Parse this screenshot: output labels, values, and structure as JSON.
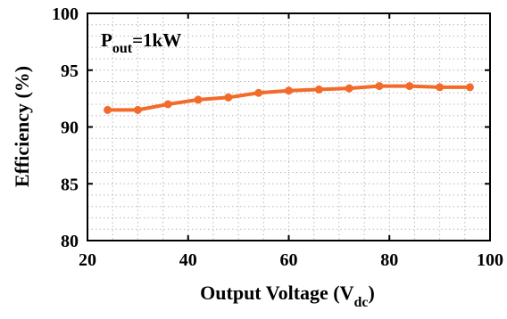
{
  "chart_data": {
    "type": "line",
    "title": "",
    "xlabel": "Output Voltage (V",
    "xlabel_sub": "dc",
    "xlabel_close": ")",
    "ylabel": "Efficiency (%)",
    "annotation": {
      "main": "P",
      "sub": "out",
      "rest": "=1kW"
    },
    "xlim": [
      20,
      100
    ],
    "ylim": [
      80,
      100
    ],
    "xticks": [
      20,
      40,
      60,
      80,
      100
    ],
    "yticks": [
      80,
      85,
      90,
      95,
      100
    ],
    "grid": "dotted",
    "series": [
      {
        "color": "#f26b2a",
        "marker": "circle",
        "x": [
          24,
          30,
          36,
          42,
          48,
          54,
          60,
          66,
          72,
          78,
          84,
          90,
          96
        ],
        "y": [
          91.5,
          91.5,
          92.0,
          92.4,
          92.6,
          93.0,
          93.2,
          93.3,
          93.4,
          93.6,
          93.6,
          93.5,
          93.5
        ]
      }
    ]
  }
}
